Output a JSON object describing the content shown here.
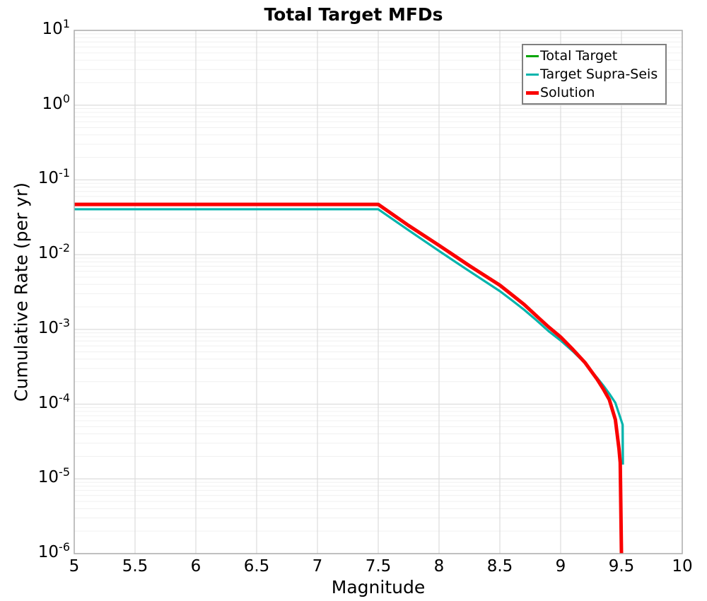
{
  "title": "Total Target MFDs",
  "colors": {
    "background": "#ffffff",
    "grid_major": "#dcdcdc",
    "grid_minor": "#f0f0f0",
    "frame": "#ababab",
    "legend_border": "#7f7f7f",
    "text": "#000000",
    "total_target_green": "#00a600",
    "target_supra_seis_teal": "#00b4ac",
    "solution_red": "#fa0000"
  },
  "axes": {
    "x_ticks": [
      {
        "value": 5,
        "label": "5"
      },
      {
        "value": 5.5,
        "label": "5.5"
      },
      {
        "value": 6,
        "label": "6"
      },
      {
        "value": 6.5,
        "label": "6.5"
      },
      {
        "value": 7,
        "label": "7"
      },
      {
        "value": 7.5,
        "label": "7.5"
      },
      {
        "value": 8,
        "label": "8"
      },
      {
        "value": 8.5,
        "label": "8.5"
      },
      {
        "value": 9,
        "label": "9"
      },
      {
        "value": 9.5,
        "label": "9.5"
      },
      {
        "value": 10,
        "label": "10"
      }
    ],
    "y_tick_base": "10",
    "y_tick_exponents": [
      1,
      0,
      -1,
      -2,
      -3,
      -4,
      -5,
      -6
    ]
  },
  "chart_data": {
    "type": "line",
    "title": "Total Target MFDs",
    "xlabel": "Magnitude",
    "ylabel": "Cumulative Rate (per yr)",
    "xlim": [
      5,
      10
    ],
    "ylim": [
      1e-06,
      10
    ],
    "x_scale": "linear",
    "y_scale": "log",
    "grid": true,
    "legend_position": "top-right",
    "series": [
      {
        "name": "Total Target",
        "color": "#00a600",
        "line_width": 3,
        "note": "coincides with Solution curve; hidden beneath it in the plot",
        "points": [
          [
            5.0,
            0.047
          ],
          [
            7.5,
            0.047
          ],
          [
            7.75,
            0.0245
          ],
          [
            8.0,
            0.0133
          ],
          [
            8.25,
            0.0071
          ],
          [
            8.5,
            0.0039
          ],
          [
            8.6,
            0.0029
          ],
          [
            8.7,
            0.00215
          ],
          [
            8.8,
            0.00152
          ],
          [
            8.9,
            0.00108
          ],
          [
            9.0,
            0.00079
          ],
          [
            9.1,
            0.00054
          ],
          [
            9.2,
            0.00036
          ],
          [
            9.3,
            0.000215
          ],
          [
            9.35,
            0.00016
          ],
          [
            9.4,
            0.000115
          ],
          [
            9.45,
            6.2e-05
          ],
          [
            9.48,
            2.5e-05
          ],
          [
            9.49,
            1.65e-05
          ],
          [
            9.5,
            1e-06
          ]
        ]
      },
      {
        "name": "Target Supra-Seis",
        "color": "#00b4ac",
        "line_width": 3.2,
        "points": [
          [
            5.0,
            0.0405
          ],
          [
            7.5,
            0.0405
          ],
          [
            7.75,
            0.0212
          ],
          [
            8.0,
            0.0112
          ],
          [
            8.25,
            0.006
          ],
          [
            8.5,
            0.00325
          ],
          [
            8.6,
            0.00245
          ],
          [
            8.7,
            0.00183
          ],
          [
            8.8,
            0.00133
          ],
          [
            8.9,
            0.00095
          ],
          [
            9.0,
            0.00071
          ],
          [
            9.1,
            0.00051
          ],
          [
            9.2,
            0.000355
          ],
          [
            9.3,
            0.000225
          ],
          [
            9.35,
            0.000178
          ],
          [
            9.4,
            0.000138
          ],
          [
            9.45,
            0.000104
          ],
          [
            9.51,
            5.3e-05
          ],
          [
            9.512,
            1.55e-05
          ]
        ]
      },
      {
        "name": "Solution",
        "color": "#fa0000",
        "line_width": 5,
        "points": [
          [
            5.0,
            0.047
          ],
          [
            7.5,
            0.047
          ],
          [
            7.75,
            0.0245
          ],
          [
            8.0,
            0.0133
          ],
          [
            8.25,
            0.0071
          ],
          [
            8.5,
            0.0039
          ],
          [
            8.6,
            0.0029
          ],
          [
            8.7,
            0.00215
          ],
          [
            8.8,
            0.00152
          ],
          [
            8.9,
            0.00108
          ],
          [
            9.0,
            0.00079
          ],
          [
            9.1,
            0.00054
          ],
          [
            9.2,
            0.00036
          ],
          [
            9.3,
            0.000215
          ],
          [
            9.35,
            0.00016
          ],
          [
            9.4,
            0.000115
          ],
          [
            9.45,
            6.2e-05
          ],
          [
            9.48,
            2.5e-05
          ],
          [
            9.49,
            1.65e-05
          ],
          [
            9.5,
            1e-06
          ]
        ]
      }
    ]
  }
}
